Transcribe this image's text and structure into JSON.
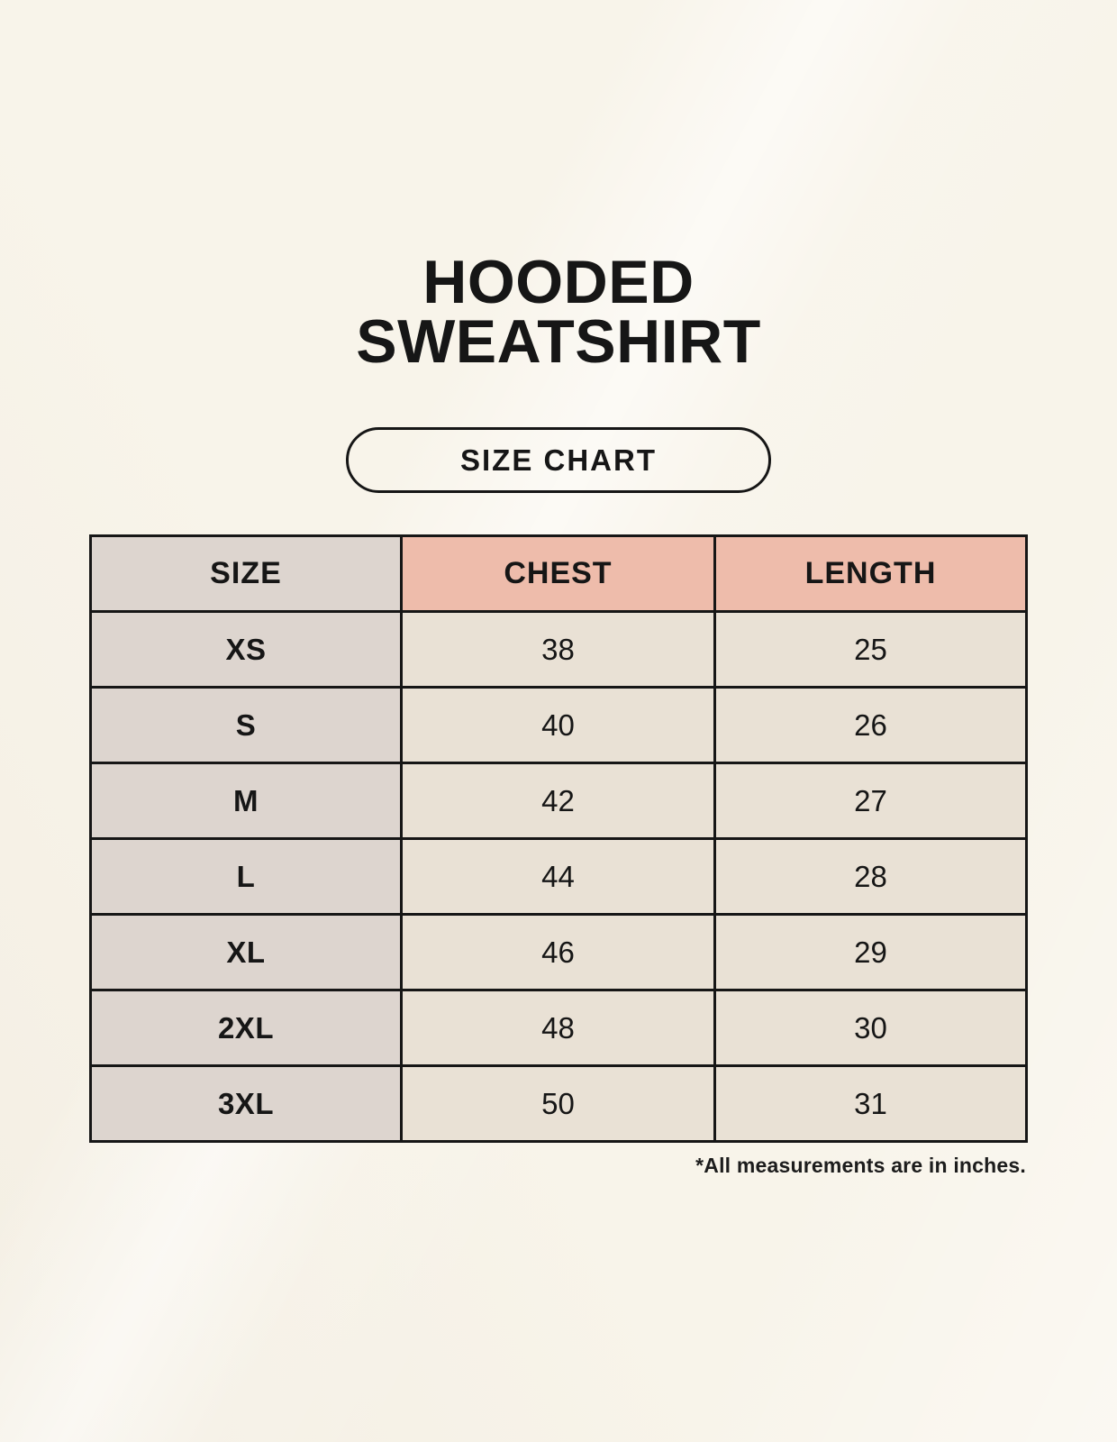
{
  "header": {
    "title_line1": "HOODED",
    "title_line2": "SWEATSHIRT",
    "badge_label": "SIZE CHART"
  },
  "colors": {
    "background": "#f8f4ea",
    "accent_header": "#eebcab",
    "size_column": "#ddd5cf",
    "cell_background": "#e9e1d5",
    "table_border": "#161616",
    "text": "#161616"
  },
  "chart_data": {
    "type": "table",
    "title": "HOODED SWEATSHIRT",
    "subtitle": "SIZE CHART",
    "columns": [
      "SIZE",
      "CHEST",
      "LENGTH"
    ],
    "rows": [
      [
        "XS",
        38,
        25
      ],
      [
        "S",
        40,
        26
      ],
      [
        "M",
        42,
        27
      ],
      [
        "L",
        44,
        28
      ],
      [
        "XL",
        46,
        29
      ],
      [
        "2XL",
        48,
        30
      ],
      [
        "3XL",
        50,
        31
      ]
    ],
    "note": "*All measurements are in inches.",
    "units": "inches",
    "layout": {
      "header_fill_size": "gray",
      "header_fill_measurements": "salmon",
      "grid": "on"
    }
  }
}
